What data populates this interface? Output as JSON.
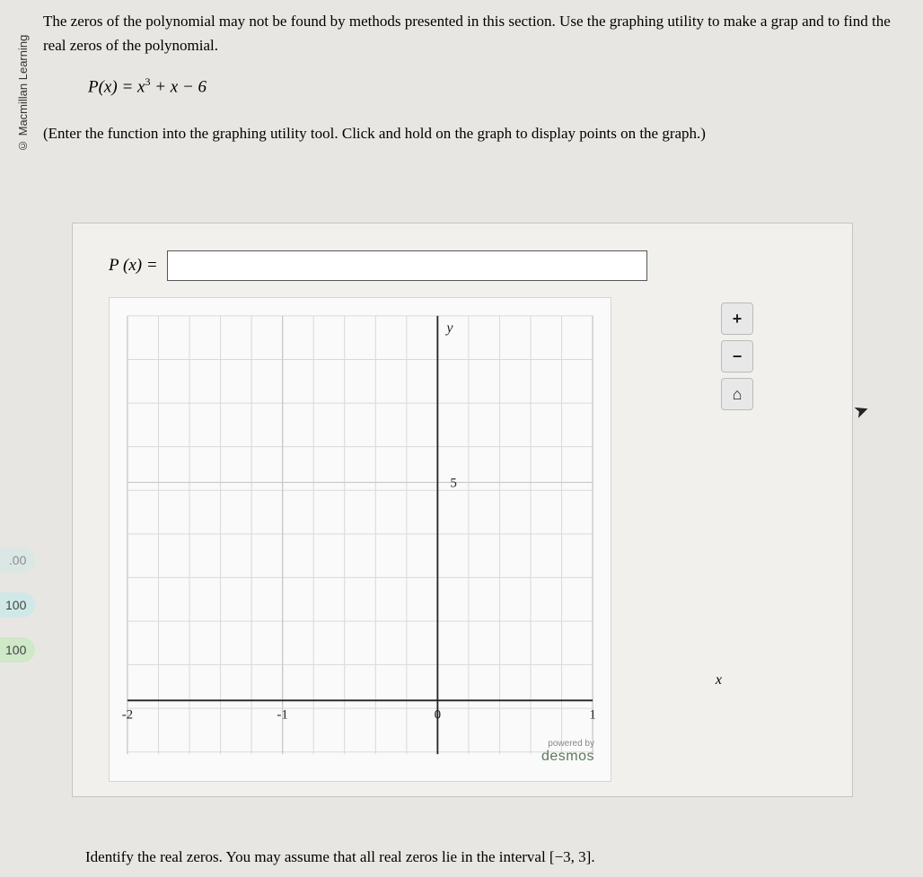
{
  "copyright": "© Macmillan Learning",
  "intro": "The zeros of the polynomial may not be found by methods presented in this section. Use the graphing utility to make a grap and to find the real zeros of the polynomial.",
  "equation_prefix": "P(x) = x",
  "equation_exp": "3",
  "equation_suffix": " + x − 6",
  "instruction": "(Enter the function into the graphing utility tool. Click and hold on the graph to display points on the graph.)",
  "input": {
    "label": "P (x) =",
    "value": ""
  },
  "graph": {
    "background_color": "#fafafa",
    "grid_color": "#d9d9d9",
    "major_grid_color": "#c9c9c9",
    "axis_color": "#222222",
    "x_ticks": [
      {
        "pos_frac": 0.0,
        "label": "-2"
      },
      {
        "pos_frac": 0.3333,
        "label": "-1"
      },
      {
        "pos_frac": 0.6667,
        "label": "0"
      },
      {
        "pos_frac": 1.0,
        "label": "1"
      }
    ],
    "y_ticks": [
      {
        "pos_frac": 0.62,
        "label": "5"
      }
    ],
    "y_label": "y",
    "x_label": "x",
    "x_axis_frac": 0.6667,
    "y_axis_label_yfrac": 0.95,
    "minor_div_per_major": 5
  },
  "controls": {
    "zoom_in": "+",
    "zoom_out": "−",
    "home": "⌂"
  },
  "brand": {
    "powered": "powered by",
    "name": "desmos"
  },
  "tabs": [
    {
      "label": ".00",
      "variant": "faded"
    },
    {
      "label": "100",
      "variant": ""
    },
    {
      "label": "100",
      "variant": "green"
    }
  ],
  "footer": "Identify the real zeros. You may assume that all real zeros lie in the interval [−3, 3]."
}
